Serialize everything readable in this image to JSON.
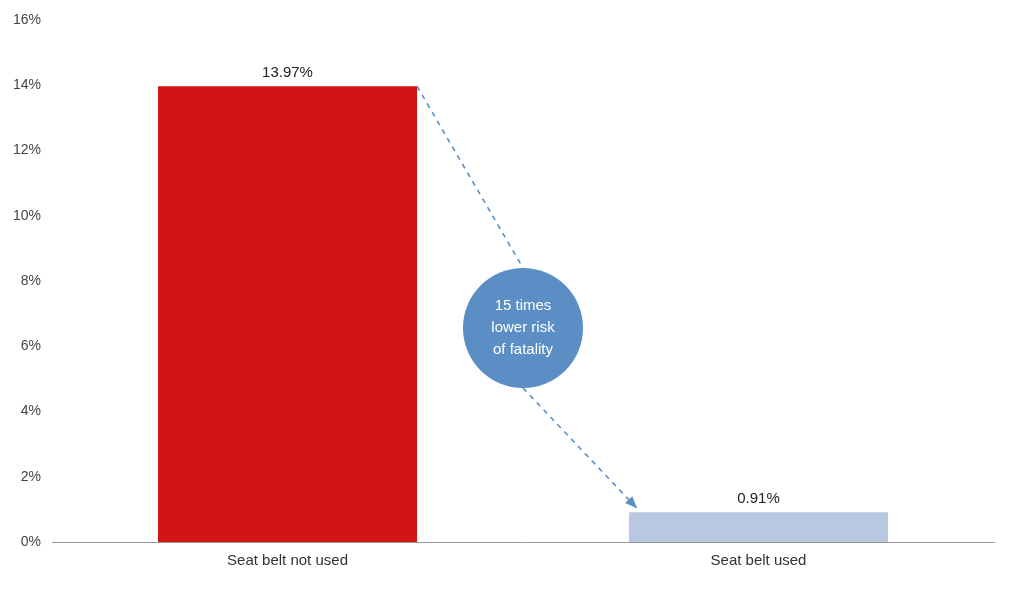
{
  "chart_data": {
    "type": "bar",
    "categories": [
      "Seat belt not used",
      "Seat belt used"
    ],
    "values": [
      13.97,
      0.91
    ],
    "value_labels": [
      "13.97%",
      "0.91%"
    ],
    "data_labels": true,
    "colors": [
      "#d11414",
      "#b8c8e0"
    ],
    "ylim": [
      0,
      16
    ],
    "yticks": [
      {
        "value": 0,
        "label": "0%"
      },
      {
        "value": 2,
        "label": "2%"
      },
      {
        "value": 4,
        "label": "4%"
      },
      {
        "value": 6,
        "label": "6%"
      },
      {
        "value": 8,
        "label": "8%"
      },
      {
        "value": 10,
        "label": "10%"
      },
      {
        "value": 12,
        "label": "12%"
      },
      {
        "value": 14,
        "label": "14%"
      },
      {
        "value": 16,
        "label": "16%"
      }
    ],
    "annotations": [
      "15 times\nlower risk\nof fatality"
    ],
    "grid": false
  }
}
